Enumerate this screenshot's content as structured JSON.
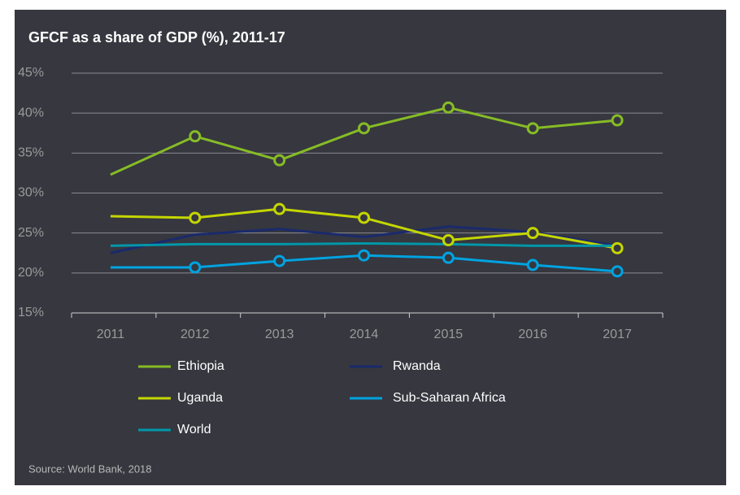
{
  "chart_data": {
    "type": "line",
    "title": "GFCF as a share of GDP (%), 2011-17",
    "source": "Source: World Bank, 2018",
    "categories": [
      "2011",
      "2012",
      "2013",
      "2014",
      "2015",
      "2016",
      "2017"
    ],
    "ylim": [
      15,
      45
    ],
    "yticks": [
      {
        "value": 15,
        "label": "15%"
      },
      {
        "value": 20,
        "label": "20%"
      },
      {
        "value": 25,
        "label": "25%"
      },
      {
        "value": 30,
        "label": "30%"
      },
      {
        "value": 35,
        "label": "35%"
      },
      {
        "value": 40,
        "label": "40%"
      },
      {
        "value": 45,
        "label": "45%"
      }
    ],
    "grid": true,
    "legend": "bottom",
    "series": [
      {
        "name": "Ethiopia",
        "color": "#86bc25",
        "marker": true,
        "values": [
          32.3,
          37.1,
          34.1,
          38.1,
          40.7,
          38.1,
          39.1
        ]
      },
      {
        "name": "Rwanda",
        "color": "#1a2a6c",
        "marker": false,
        "values": [
          22.5,
          24.8,
          25.5,
          24.5,
          25.8,
          25.1,
          23.4
        ]
      },
      {
        "name": "Uganda",
        "color": "#c4d600",
        "marker": true,
        "values": [
          27.1,
          26.9,
          28.0,
          26.9,
          24.1,
          25.0,
          23.1
        ]
      },
      {
        "name": "Sub-Saharan Africa",
        "color": "#00a3e0",
        "marker": true,
        "values": [
          20.7,
          20.7,
          21.5,
          22.2,
          21.9,
          21.0,
          20.2
        ]
      },
      {
        "name": "World",
        "color": "#0097a9",
        "marker": false,
        "values": [
          23.4,
          23.6,
          23.6,
          23.7,
          23.6,
          23.4,
          23.4
        ]
      }
    ]
  }
}
